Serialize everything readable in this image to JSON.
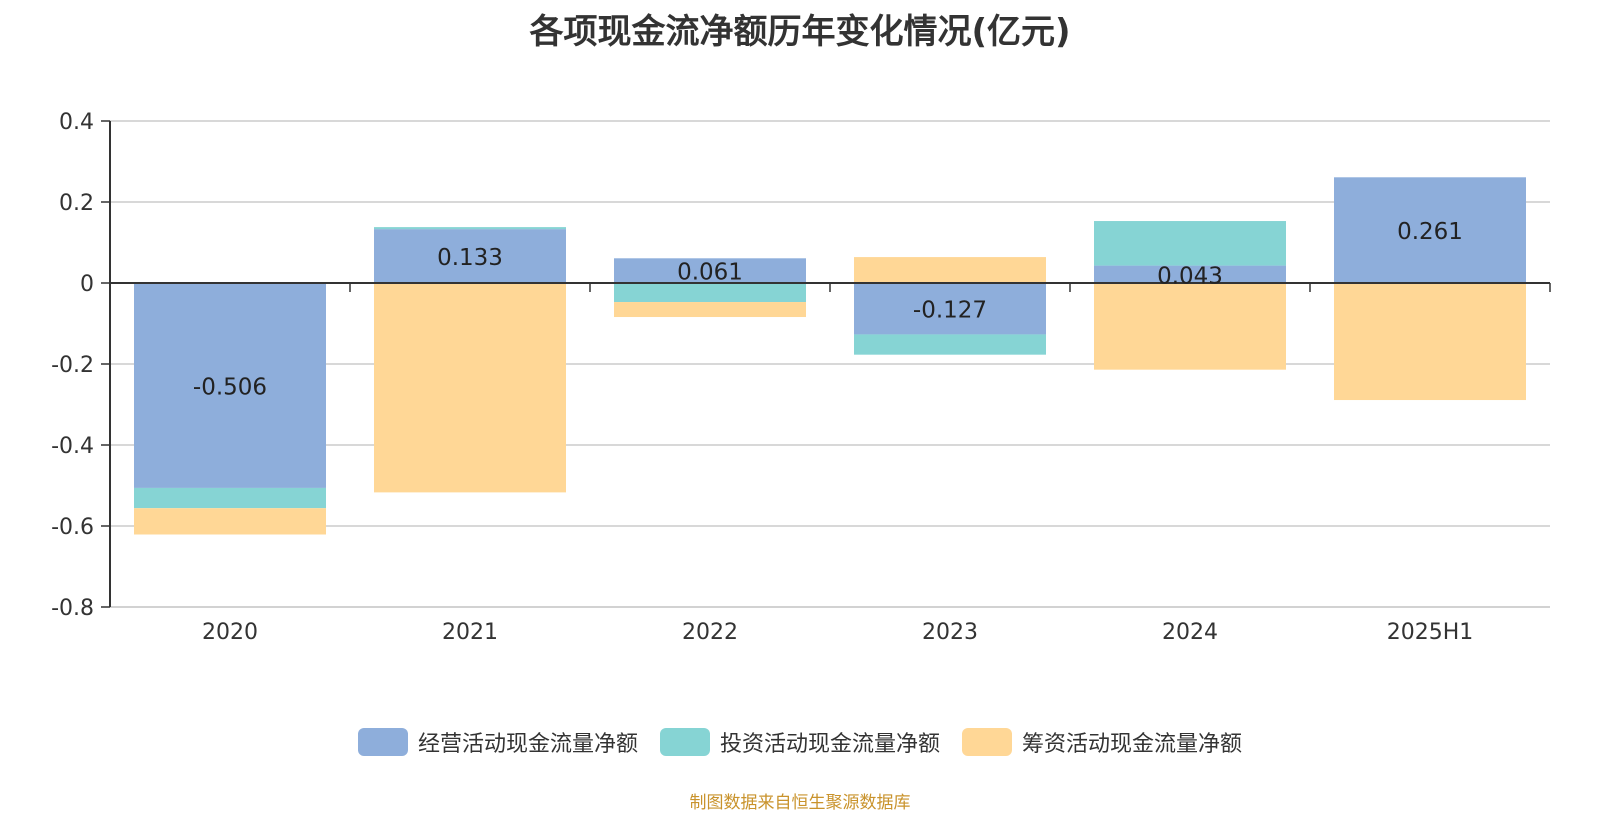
{
  "title": "各项现金流净额历年变化情况(亿元)",
  "source": "制图数据来自恒生聚源数据库",
  "colors": {
    "operating": "#8eaedb",
    "investing": "#86d4d4",
    "financing": "#ffd796",
    "grid": "#cccccc",
    "axis": "#333333",
    "text": "#333333",
    "source": "#c9932c"
  },
  "chart_data": {
    "type": "bar",
    "stacked": true,
    "categories": [
      "2020",
      "2021",
      "2022",
      "2023",
      "2024",
      "2025H1"
    ],
    "ylim": [
      -0.8,
      0.4
    ],
    "yticks": [
      0.4,
      0.2,
      0,
      -0.2,
      -0.4,
      -0.6,
      -0.8
    ],
    "ytick_labels": [
      "0.4",
      "0.2",
      "0",
      "-0.2",
      "-0.4",
      "-0.6",
      "-0.8"
    ],
    "grid": true,
    "legend_position": "bottom",
    "series": [
      {
        "name": "经营活动现金流量净额",
        "color_key": "operating",
        "values": [
          -0.506,
          0.133,
          0.061,
          -0.127,
          0.043,
          0.261
        ],
        "labels": [
          "-0.506",
          "0.133",
          "0.061",
          "-0.127",
          "0.043",
          "0.261"
        ]
      },
      {
        "name": "投资活动现金流量净额",
        "color_key": "investing",
        "values": [
          -0.05,
          0.005,
          -0.047,
          -0.05,
          0.11,
          0.0
        ],
        "labels": null
      },
      {
        "name": "筹资活动现金流量净额",
        "color_key": "financing",
        "values": [
          -0.065,
          -0.517,
          -0.037,
          0.064,
          -0.214,
          -0.289
        ],
        "labels": null
      }
    ]
  }
}
